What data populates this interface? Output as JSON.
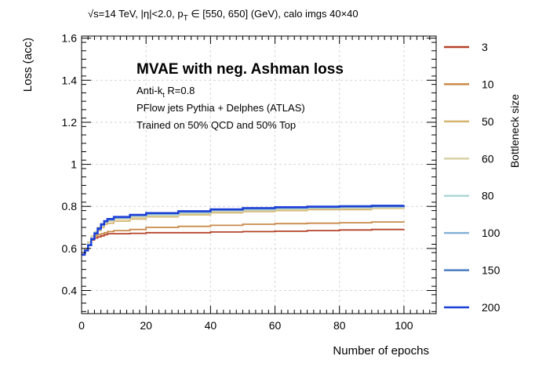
{
  "chart_data": {
    "type": "line",
    "header": {
      "sqrt_symbol": "√",
      "text": "s=14 TeV, |η|<2.0, p",
      "subscript": "T",
      "text_after": " ∈ [550, 650] (GeV), calo imgs 40×40"
    },
    "title": "MVAE with neg. Ashman loss",
    "annotations": {
      "algo_main": "Anti-k",
      "algo_sub": "t",
      "algo_rest": " R=0.8",
      "line2": "PFlow jets Pythia + Delphes (ATLAS)",
      "line3": "Trained on 50% QCD and 50% Top"
    },
    "xlabel": "Number of epochs",
    "ylabel": "Loss (acc)",
    "xlim": [
      0,
      110
    ],
    "ylim": [
      0.29,
      1.61
    ],
    "xticks": [
      0,
      20,
      40,
      60,
      80,
      100
    ],
    "yticks": [
      0.4,
      0.6,
      0.8,
      1.0,
      1.2,
      1.4,
      1.6
    ],
    "ytick_labels": [
      "0.4",
      "0.6",
      "0.8",
      "1",
      "1.2",
      "1.4",
      "1.6"
    ],
    "grid": true,
    "legend": {
      "title": "Bottleneck size",
      "placement": "right, outside plot",
      "entries": [
        {
          "label": "3",
          "color": "#b5432a"
        },
        {
          "label": "10",
          "color": "#c98a4a"
        },
        {
          "label": "50",
          "color": "#d4b46e"
        },
        {
          "label": "60",
          "color": "#d9d2a6"
        },
        {
          "label": "80",
          "color": "#aed6d6"
        },
        {
          "label": "100",
          "color": "#86b2d8"
        },
        {
          "label": "150",
          "color": "#4a7cc0"
        },
        {
          "label": "200",
          "color": "#1c3fd6"
        }
      ]
    },
    "x": [
      0,
      1,
      2,
      3,
      4,
      5,
      6,
      7,
      8,
      10,
      15,
      20,
      30,
      40,
      50,
      60,
      70,
      80,
      90,
      100
    ],
    "series": [
      {
        "name": "3",
        "color": "#b5432a",
        "values": [
          0.57,
          0.6,
          0.62,
          0.64,
          0.65,
          0.655,
          0.66,
          0.665,
          0.67,
          0.67,
          0.672,
          0.675,
          0.675,
          0.678,
          0.68,
          0.682,
          0.685,
          0.688,
          0.69,
          0.692
        ]
      },
      {
        "name": "10",
        "color": "#c98a4a",
        "values": [
          0.57,
          0.6,
          0.63,
          0.65,
          0.66,
          0.665,
          0.67,
          0.675,
          0.68,
          0.685,
          0.69,
          0.7,
          0.705,
          0.71,
          0.715,
          0.718,
          0.72,
          0.722,
          0.726,
          0.728
        ]
      },
      {
        "name": "50",
        "color": "#d4b46e",
        "values": [
          0.57,
          0.59,
          0.62,
          0.645,
          0.665,
          0.685,
          0.7,
          0.715,
          0.72,
          0.73,
          0.74,
          0.75,
          0.76,
          0.77,
          0.775,
          0.78,
          0.785,
          0.785,
          0.79,
          0.792
        ]
      },
      {
        "name": "60",
        "color": "#d9d2a6",
        "values": [
          0.57,
          0.6,
          0.63,
          0.66,
          0.68,
          0.7,
          0.715,
          0.725,
          0.73,
          0.74,
          0.748,
          0.755,
          0.765,
          0.775,
          0.78,
          0.785,
          0.79,
          0.79,
          0.792,
          0.795
        ]
      },
      {
        "name": "80",
        "color": "#aed6d6",
        "values": [
          0.57,
          0.59,
          0.62,
          0.65,
          0.675,
          0.695,
          0.71,
          0.725,
          0.735,
          0.745,
          0.755,
          0.76,
          0.77,
          0.78,
          0.785,
          0.79,
          0.793,
          0.795,
          0.797,
          0.8
        ]
      },
      {
        "name": "100",
        "color": "#86b2d8",
        "values": [
          0.57,
          0.59,
          0.615,
          0.645,
          0.67,
          0.69,
          0.71,
          0.725,
          0.735,
          0.745,
          0.757,
          0.765,
          0.773,
          0.782,
          0.788,
          0.792,
          0.795,
          0.797,
          0.799,
          0.801
        ]
      },
      {
        "name": "150",
        "color": "#4a7cc0",
        "values": [
          0.57,
          0.59,
          0.615,
          0.645,
          0.67,
          0.692,
          0.712,
          0.728,
          0.738,
          0.748,
          0.758,
          0.766,
          0.775,
          0.784,
          0.79,
          0.794,
          0.797,
          0.799,
          0.801,
          0.803
        ]
      },
      {
        "name": "200",
        "color": "#1c3fd6",
        "values": [
          0.57,
          0.59,
          0.615,
          0.645,
          0.672,
          0.695,
          0.715,
          0.73,
          0.74,
          0.75,
          0.76,
          0.768,
          0.777,
          0.786,
          0.792,
          0.796,
          0.799,
          0.801,
          0.803,
          0.805
        ]
      }
    ]
  }
}
